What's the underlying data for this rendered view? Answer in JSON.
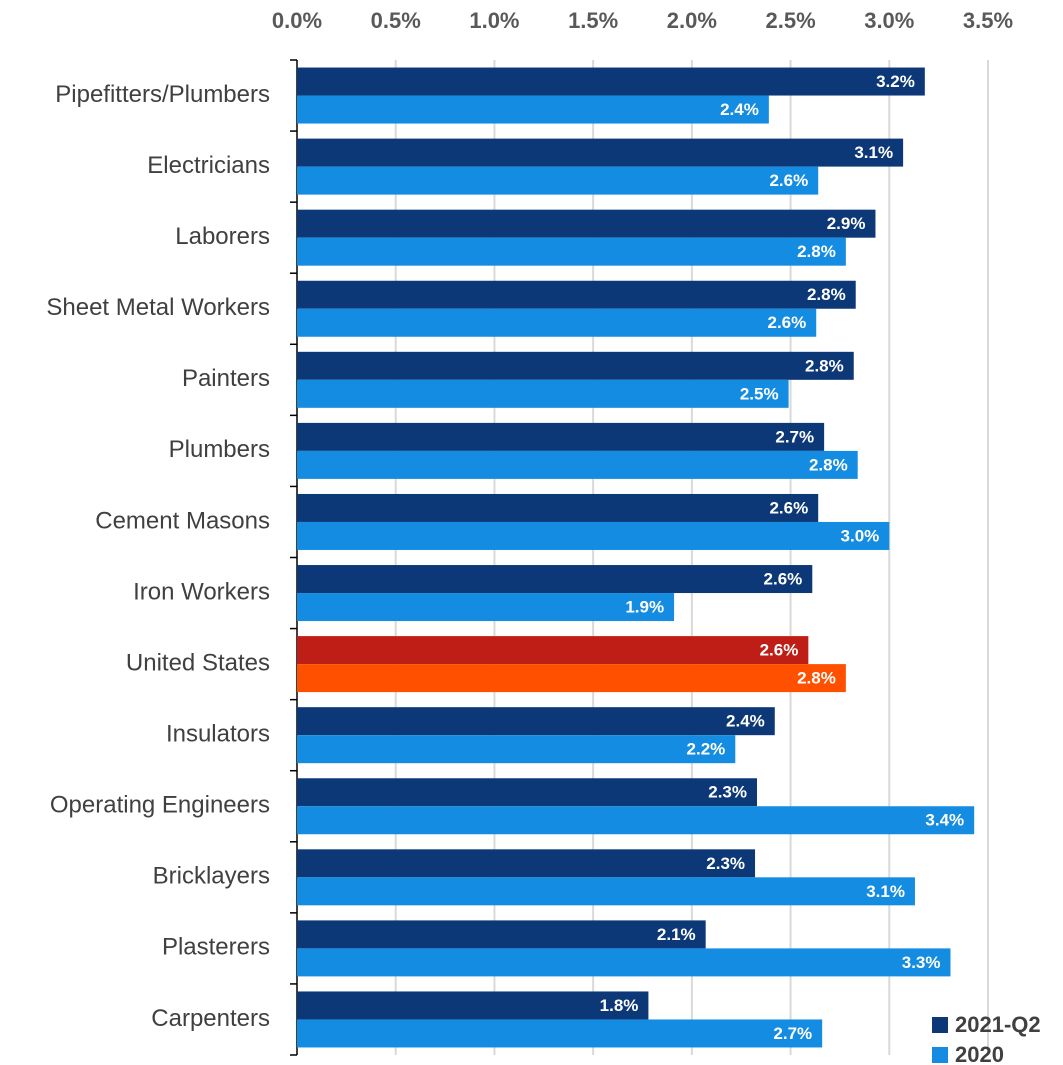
{
  "chart_data": {
    "type": "hbar",
    "categories": [
      "Pipefitters/Plumbers",
      "Electricians",
      "Laborers",
      "Sheet Metal Workers",
      "Painters",
      "Plumbers",
      "Cement Masons",
      "Iron Workers",
      "United States",
      "Insulators",
      "Operating Engineers",
      "Bricklayers",
      "Plasterers",
      "Carpenters"
    ],
    "series": [
      {
        "name": "2021-Q2",
        "color": "#0d3878",
        "highlight_color": "#be1e16",
        "values": [
          3.18,
          3.07,
          2.93,
          2.83,
          2.82,
          2.67,
          2.64,
          2.61,
          2.59,
          2.42,
          2.33,
          2.32,
          2.07,
          1.78
        ],
        "value_labels": [
          "3.2%",
          "3.1%",
          "2.9%",
          "2.8%",
          "2.8%",
          "2.7%",
          "2.6%",
          "2.6%",
          "2.6%",
          "2.4%",
          "2.3%",
          "2.3%",
          "2.1%",
          "1.8%"
        ]
      },
      {
        "name": "2020",
        "color": "#148ce1",
        "highlight_color": "#ff5000",
        "values": [
          2.39,
          2.64,
          2.78,
          2.63,
          2.49,
          2.84,
          3.0,
          1.91,
          2.78,
          2.22,
          3.43,
          3.13,
          3.31,
          2.66
        ],
        "value_labels": [
          "2.4%",
          "2.6%",
          "2.8%",
          "2.6%",
          "2.5%",
          "2.8%",
          "3.0%",
          "1.9%",
          "2.8%",
          "2.2%",
          "3.4%",
          "3.1%",
          "3.3%",
          "2.7%"
        ]
      }
    ],
    "highlight_index": 8,
    "xlim": [
      0,
      3.5
    ],
    "xticks": [
      {
        "value": 0,
        "label": "0.0%"
      },
      {
        "value": 0.5,
        "label": "0.5%"
      },
      {
        "value": 1,
        "label": "1.0%"
      },
      {
        "value": 1.5,
        "label": "1.5%"
      },
      {
        "value": 2,
        "label": "2.0%"
      },
      {
        "value": 2.5,
        "label": "2.5%"
      },
      {
        "value": 3,
        "label": "3.0%"
      },
      {
        "value": 3.5,
        "label": "3.5%"
      }
    ],
    "grid": true,
    "legend": "bottom-right"
  }
}
